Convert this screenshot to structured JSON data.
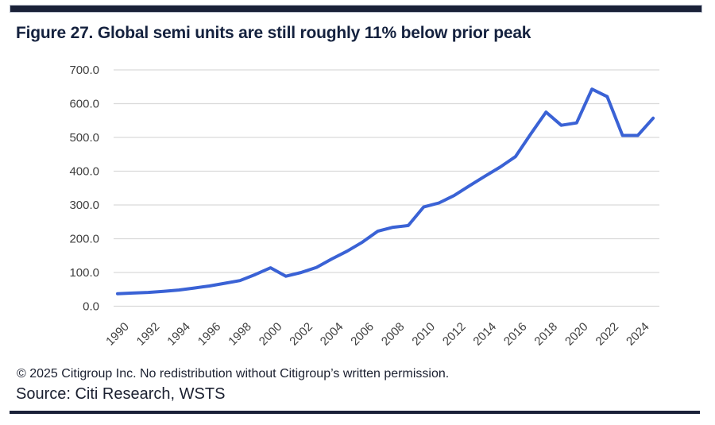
{
  "page": {
    "title": "Figure 27. Global semi units are still roughly 11% below prior peak",
    "footer": {
      "copyright": "© 2025 Citigroup Inc. No redistribution without Citigroup’s written permission.",
      "source": "Source: Citi Research, WSTS"
    },
    "colors": {
      "accent_navy": "#1a2138",
      "line_blue": "#3a62d5",
      "gridline": "#d9d9d9",
      "axis_text": "#3f3f3f",
      "title_text": "#14213e"
    }
  },
  "chart_data": {
    "type": "line",
    "title": "Figure 27. Global semi units are still roughly 11% below prior peak",
    "xlabel": "",
    "ylabel": "",
    "ylim": [
      0,
      700
    ],
    "grid": "horizontal",
    "legend": "none",
    "x": [
      1990,
      1991,
      1992,
      1993,
      1994,
      1995,
      1996,
      1997,
      1998,
      1999,
      2000,
      2001,
      2002,
      2003,
      2004,
      2005,
      2006,
      2007,
      2008,
      2009,
      2010,
      2011,
      2012,
      2013,
      2014,
      2015,
      2016,
      2017,
      2018,
      2019,
      2020,
      2021,
      2022,
      2023,
      2024,
      2025
    ],
    "series": [
      {
        "name": "Global semi units",
        "values": [
          37,
          39,
          41,
          44,
          48,
          54,
          60,
          68,
          76,
          94,
          114,
          89,
          100,
          115,
          140,
          163,
          190,
          222,
          234,
          239,
          294,
          306,
          328,
          357,
          385,
          412,
          443,
          510,
          575,
          536,
          543,
          643,
          621,
          506,
          506,
          557
        ]
      }
    ],
    "x_tick_labels": [
      "1990",
      "1992",
      "1994",
      "1996",
      "1998",
      "2000",
      "2002",
      "2004",
      "2006",
      "2008",
      "2010",
      "2012",
      "2014",
      "2016",
      "2018",
      "2020",
      "2022",
      "2024"
    ],
    "y_tick_labels": [
      "700.0",
      "600.0",
      "500.0",
      "400.0",
      "300.0",
      "200.0",
      "100.0",
      "0.0"
    ]
  }
}
